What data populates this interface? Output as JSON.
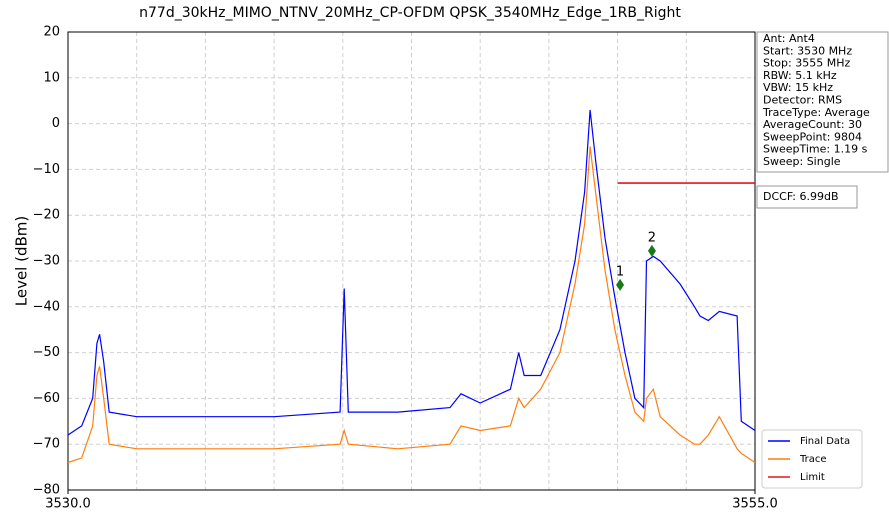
{
  "chart_data": {
    "type": "line",
    "title": "n77d_30kHz_MIMO_NTNV_20MHz_CP-OFDM QPSK_3540MHz_Edge_1RB_Right",
    "y_label": "Level (dBm)",
    "x": [
      3530.0,
      3530.5,
      3530.9,
      3531.05,
      3531.15,
      3531.3,
      3531.5,
      3532.5,
      3535,
      3537.5,
      3539.9,
      3540.05,
      3540.2,
      3542,
      3543.9,
      3544.3,
      3545,
      3546.1,
      3546.4,
      3546.6,
      3547.2,
      3547.9,
      3548.45,
      3548.8,
      3549.0,
      3549.2,
      3549.54,
      3549.9,
      3550.27,
      3550.63,
      3550.95,
      3551.05,
      3551.3,
      3551.55,
      3552.27,
      3552.8,
      3553.0,
      3553.3,
      3553.7,
      3554.35,
      3554.5,
      3555
    ],
    "series": [
      {
        "name": "Final Data",
        "color": "#0000ff",
        "values": [
          -68,
          -66,
          -60,
          -48,
          -46,
          -52,
          -63,
          -64,
          -64,
          -64,
          -63,
          -36,
          -63,
          -63,
          -62,
          -59,
          -61,
          -58,
          -50,
          -55,
          -55,
          -45,
          -30,
          -15,
          3,
          -8,
          -25,
          -38,
          -50,
          -60,
          -62,
          -30,
          -29,
          -30,
          -35,
          -40,
          -42,
          -43,
          -41,
          -42,
          -65,
          -67
        ]
      },
      {
        "name": "Trace",
        "color": "#ff7f0e",
        "values": [
          -74,
          -73,
          -66,
          -55,
          -53,
          -60,
          -70,
          -71,
          -71,
          -71,
          -70,
          -67,
          -70,
          -71,
          -70,
          -66,
          -67,
          -66,
          -60,
          -62,
          -58,
          -50,
          -35,
          -22,
          -5,
          -15,
          -32,
          -45,
          -55,
          -63,
          -65,
          -60,
          -58,
          -64,
          -68,
          -70,
          -70,
          -68,
          -64,
          -71,
          -72,
          -74
        ]
      }
    ],
    "limit": {
      "name": "Limit",
      "color": "#e8141e",
      "x": [
        3550,
        3555
      ],
      "values": [
        -13,
        -13
      ]
    },
    "markers": [
      {
        "label": "1",
        "x": 3550.09,
        "y": -35.2,
        "color": "#1a7a1a"
      },
      {
        "label": "2",
        "x": 3551.25,
        "y": -27.8,
        "color": "#1a7a1a"
      }
    ],
    "xlim": [
      3530,
      3555
    ],
    "ylim": [
      -80,
      20
    ],
    "xticks": [
      {
        "value": 3530,
        "label": "3530.0"
      },
      {
        "value": 3555,
        "label": "3555.0"
      }
    ],
    "xgrid": [
      3532.5,
      3535,
      3537.5,
      3540,
      3542.5,
      3545,
      3547.5,
      3550,
      3552.5
    ],
    "yticks": [
      {
        "value": -80,
        "label": "−80"
      },
      {
        "value": -70,
        "label": "−70"
      },
      {
        "value": -60,
        "label": "−60"
      },
      {
        "value": -50,
        "label": "−50"
      },
      {
        "value": -40,
        "label": "−40"
      },
      {
        "value": -30,
        "label": "−30"
      },
      {
        "value": -20,
        "label": "−20"
      },
      {
        "value": -10,
        "label": "−10"
      },
      0,
      10,
      20
    ],
    "grid": true,
    "legend": "lower-right",
    "info": [
      "Ant: Ant4",
      "Start: 3530 MHz",
      "Stop: 3555 MHz",
      "RBW: 5.1 kHz",
      "VBW: 15 kHz",
      "Detector: RMS",
      "TraceType: Average",
      "AverageCount: 30",
      "SweepPoint: 9804",
      "SweepTime: 1.19 s",
      "Sweep: Single"
    ],
    "dccf": "DCCF: 6.99dB"
  }
}
